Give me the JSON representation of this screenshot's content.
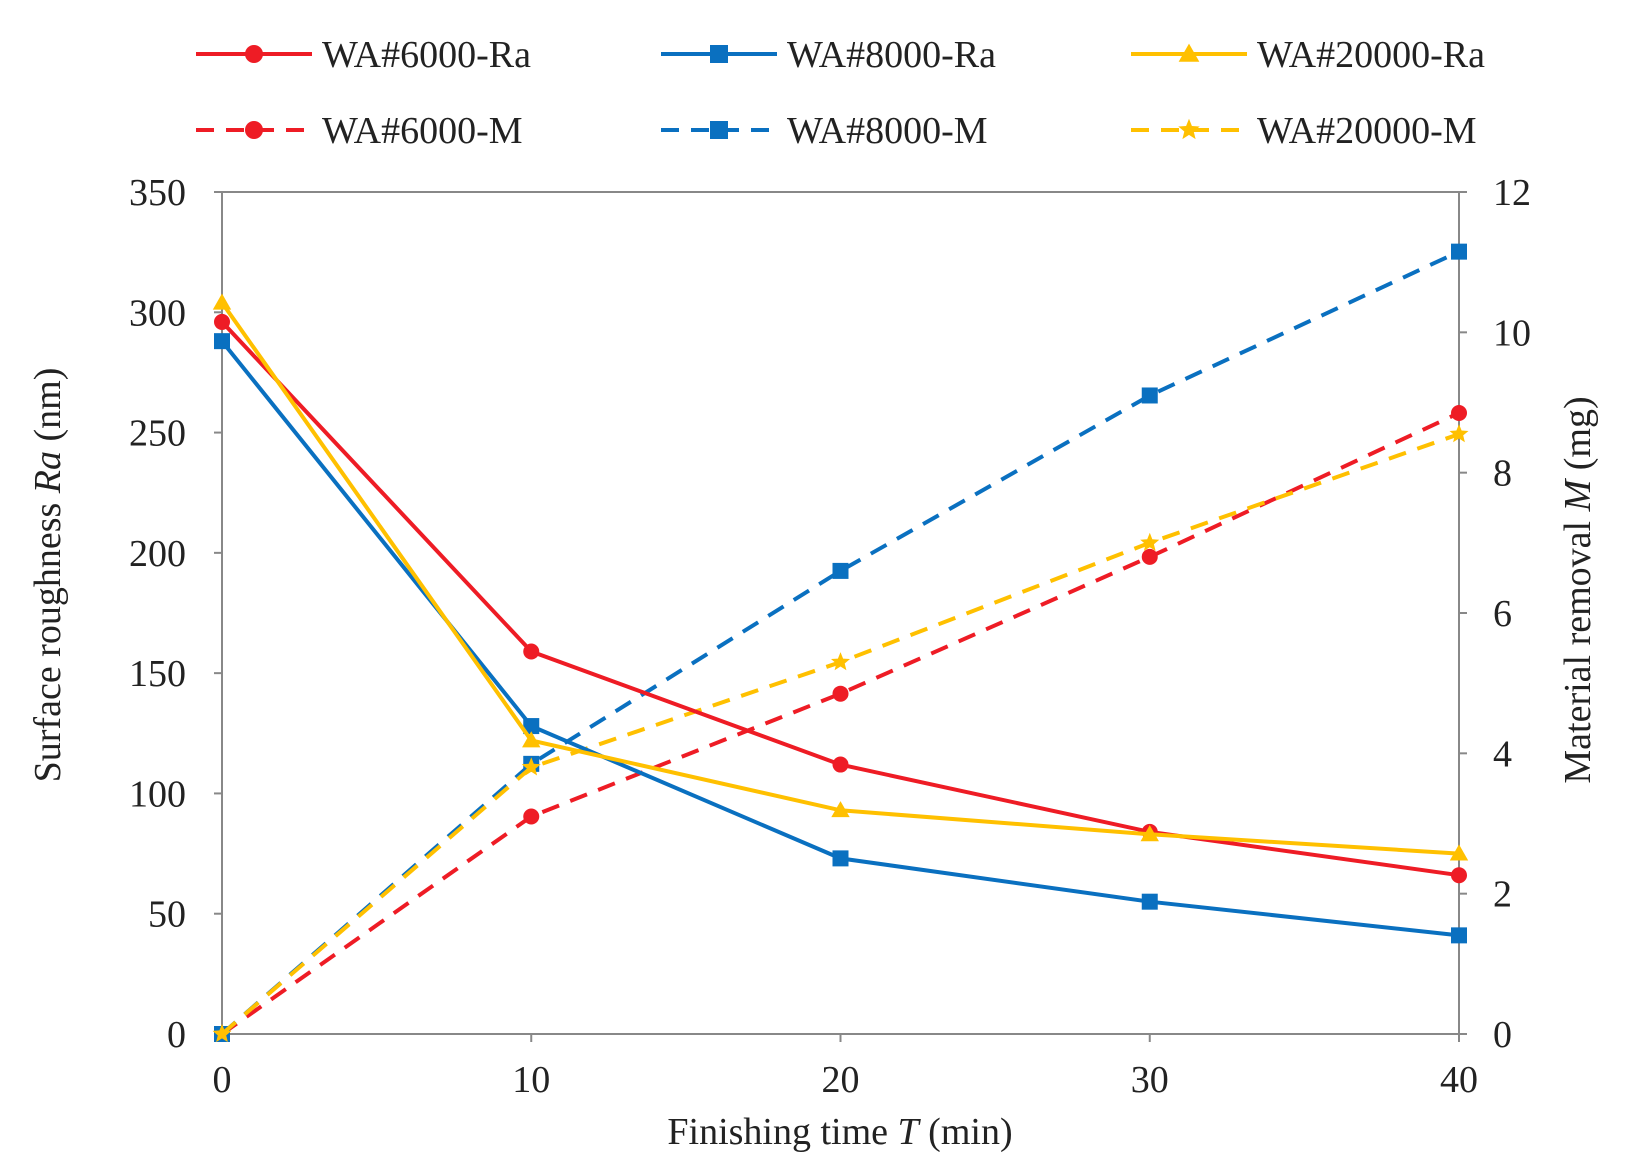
{
  "chart_data": {
    "type": "line",
    "x": [
      0,
      10,
      20,
      30,
      40
    ],
    "xlabel": {
      "prefix": "Finishing time ",
      "var": "T",
      "suffix": " (min)"
    },
    "ylabel_left": {
      "prefix": "Surface roughness ",
      "var": "Ra",
      "suffix": " (nm)"
    },
    "ylabel_right": {
      "prefix": "Material removal ",
      "var": "M",
      "suffix": " (mg)"
    },
    "xlim": [
      0,
      40
    ],
    "ylim_left": [
      0,
      350
    ],
    "ylim_right": [
      0,
      12
    ],
    "xticks": [
      "0",
      "10",
      "20",
      "30",
      "40"
    ],
    "yticks_left": [
      "0",
      "50",
      "100",
      "150",
      "200",
      "250",
      "300",
      "350"
    ],
    "yticks_right": [
      "0",
      "2",
      "4",
      "6",
      "8",
      "10",
      "12"
    ],
    "grid": false,
    "legend_position": "top",
    "series": [
      {
        "name": "WA#6000-Ra",
        "axis": "left",
        "color": "#ee1c25",
        "marker": "circle",
        "dash": false,
        "values": [
          296,
          159,
          112,
          84,
          66
        ]
      },
      {
        "name": "WA#8000-Ra",
        "axis": "left",
        "color": "#0a70c0",
        "marker": "square",
        "dash": false,
        "values": [
          288,
          128,
          73,
          55,
          41
        ]
      },
      {
        "name": "WA#20000-Ra",
        "axis": "left",
        "color": "#ffc000",
        "marker": "triangle",
        "dash": false,
        "values": [
          304,
          122,
          93,
          83,
          75
        ]
      },
      {
        "name": "WA#6000-M",
        "axis": "right",
        "color": "#ee1c25",
        "marker": "circle",
        "dash": true,
        "values": [
          0,
          3.1,
          4.85,
          6.8,
          8.85
        ]
      },
      {
        "name": "WA#8000-M",
        "axis": "right",
        "color": "#0a70c0",
        "marker": "square",
        "dash": true,
        "values": [
          0,
          3.85,
          6.6,
          9.1,
          11.15
        ]
      },
      {
        "name": "WA#20000-M",
        "axis": "right",
        "color": "#ffc000",
        "marker": "star",
        "dash": true,
        "values": [
          0,
          3.8,
          5.3,
          7.0,
          8.55
        ]
      }
    ]
  }
}
